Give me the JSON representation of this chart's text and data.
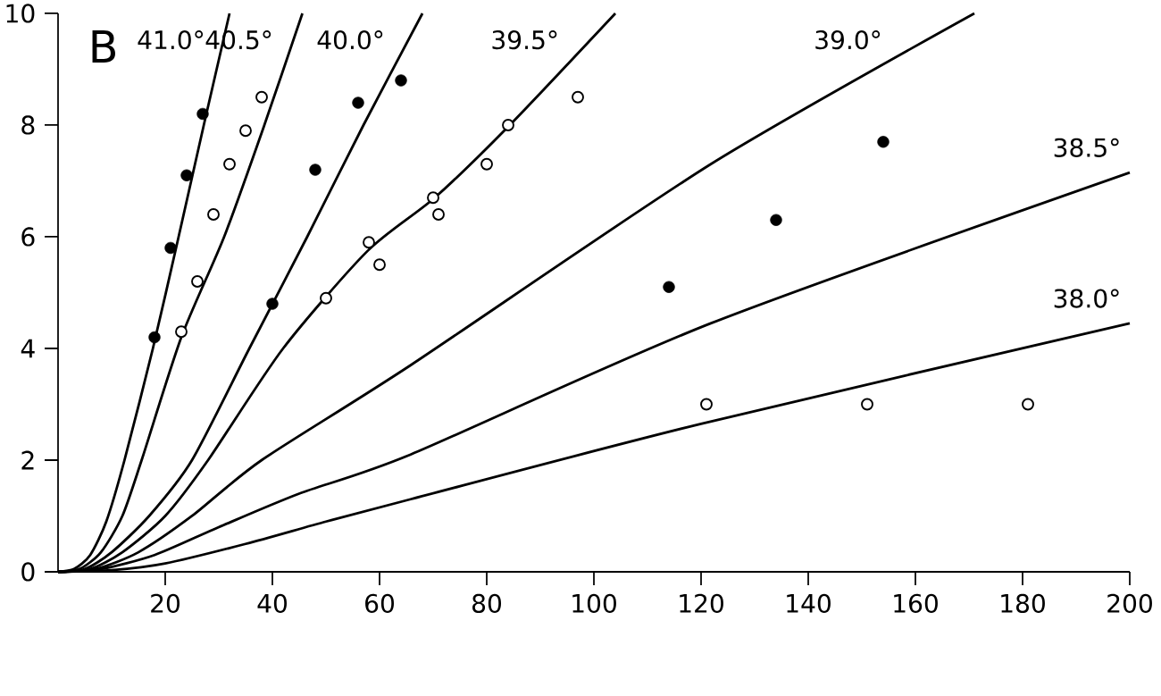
{
  "chart_data": {
    "type": "line",
    "annotations": [
      "B"
    ],
    "xlim": [
      0,
      200
    ],
    "ylim": [
      0,
      10
    ],
    "xticks": [
      20,
      40,
      60,
      80,
      100,
      120,
      140,
      160,
      180,
      200
    ],
    "yticks": [
      0,
      2,
      4,
      6,
      8,
      10
    ],
    "grid": false,
    "series": [
      {
        "name": "41.0°",
        "color": "#000000",
        "marker": "none",
        "x": [
          0,
          3,
          6,
          9,
          12.4,
          17.7,
          22.5,
          27.2,
          32
        ],
        "values": [
          0,
          0.05,
          0.3,
          0.9,
          2,
          4,
          6,
          8,
          10
        ]
      },
      {
        "name": "40.5°",
        "color": "#000000",
        "marker": "none",
        "x": [
          0,
          4,
          8,
          12,
          15.6,
          23,
          31,
          38.5,
          45.6
        ],
        "values": [
          0,
          0.05,
          0.35,
          1,
          2,
          4.2,
          6,
          8,
          10
        ]
      },
      {
        "name": "40.0°",
        "color": "#000000",
        "marker": "none",
        "x": [
          0,
          5,
          10,
          17,
          25,
          35.7,
          46.5,
          57,
          68
        ],
        "values": [
          0,
          0.05,
          0.35,
          1,
          2,
          4,
          6,
          8,
          10
        ]
      },
      {
        "name": "39.5°",
        "color": "#000000",
        "marker": "none",
        "x": [
          0,
          6,
          12,
          20,
          28,
          42,
          57.8,
          70.3,
          84.3,
          104
        ],
        "values": [
          0,
          0.05,
          0.35,
          1,
          2,
          4,
          5.75,
          6.7,
          8,
          10
        ]
      },
      {
        "name": "39.0°",
        "color": "#000000",
        "marker": "none",
        "x": [
          0,
          7,
          15,
          25,
          38,
          65.8,
          121.8,
          171
        ],
        "values": [
          0,
          0.05,
          0.35,
          1,
          2,
          3.7,
          7.3,
          10
        ]
      },
      {
        "name": "38.5°",
        "color": "#000000",
        "marker": "none",
        "x": [
          0,
          8,
          18,
          30,
          45,
          65.8,
          121.8,
          200
        ],
        "values": [
          0,
          0.05,
          0.3,
          0.8,
          1.4,
          2.1,
          4.45,
          7.15
        ]
      },
      {
        "name": "38.0°",
        "color": "#000000",
        "marker": "none",
        "x": [
          0,
          10,
          20,
          35,
          50,
          65.8,
          120,
          200
        ],
        "values": [
          0,
          0.03,
          0.15,
          0.5,
          0.9,
          1.3,
          2.65,
          4.45
        ]
      },
      {
        "type": "scatter",
        "color": "#000000",
        "marker": "circle",
        "x": [
          18,
          21,
          24,
          27,
          40,
          48,
          56,
          64,
          114,
          134,
          154
        ],
        "values": [
          4.2,
          5.8,
          7.1,
          8.2,
          4.8,
          7.2,
          8.4,
          8.8,
          5.1,
          6.3,
          7.7
        ]
      },
      {
        "type": "scatter",
        "color": "#000000",
        "marker": "circle_open",
        "x": [
          23,
          26,
          29,
          32,
          35,
          38,
          50,
          58,
          60,
          70,
          71,
          80,
          84,
          97,
          121,
          151,
          181
        ],
        "values": [
          4.3,
          5.2,
          6.4,
          7.3,
          7.9,
          8.5,
          4.9,
          5.9,
          5.5,
          6.7,
          6.4,
          7.3,
          8,
          8.5,
          3,
          3,
          3
        ]
      }
    ]
  }
}
